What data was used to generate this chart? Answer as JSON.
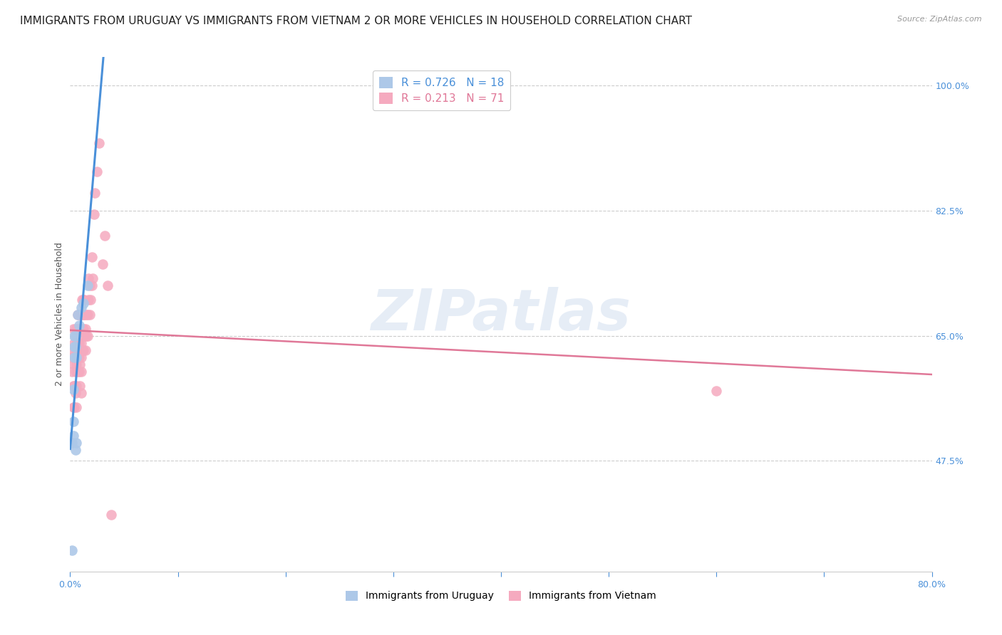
{
  "title": "IMMIGRANTS FROM URUGUAY VS IMMIGRANTS FROM VIETNAM 2 OR MORE VEHICLES IN HOUSEHOLD CORRELATION CHART",
  "source": "Source: ZipAtlas.com",
  "ylabel": "2 or more Vehicles in Household",
  "xlim": [
    0.0,
    0.8
  ],
  "ylim": [
    0.32,
    1.04
  ],
  "xticks": [
    0.0,
    0.1,
    0.2,
    0.3,
    0.4,
    0.5,
    0.6,
    0.7,
    0.8
  ],
  "xticklabels": [
    "0.0%",
    "",
    "",
    "",
    "",
    "",
    "",
    "",
    "80.0%"
  ],
  "yticks_right": [
    1.0,
    0.825,
    0.65,
    0.475
  ],
  "ytick_labels_right": [
    "100.0%",
    "82.5%",
    "65.0%",
    "47.5%"
  ],
  "legend_label1": "Immigrants from Uruguay",
  "legend_label2": "Immigrants from Vietnam",
  "uruguay_color": "#adc8e8",
  "vietnam_color": "#f5aabf",
  "uruguay_line_color": "#4a90d9",
  "vietnam_line_color": "#e07898",
  "watermark": "ZIPatlas",
  "uruguay_x": [
    0.002,
    0.002,
    0.003,
    0.003,
    0.003,
    0.004,
    0.004,
    0.004,
    0.005,
    0.005,
    0.005,
    0.006,
    0.006,
    0.007,
    0.008,
    0.01,
    0.012,
    0.016
  ],
  "uruguay_y": [
    0.35,
    0.5,
    0.51,
    0.53,
    0.575,
    0.62,
    0.635,
    0.65,
    0.635,
    0.65,
    0.49,
    0.5,
    0.62,
    0.68,
    0.665,
    0.69,
    0.695,
    0.72
  ],
  "vietnam_x": [
    0.002,
    0.002,
    0.003,
    0.003,
    0.003,
    0.003,
    0.004,
    0.004,
    0.004,
    0.004,
    0.005,
    0.005,
    0.005,
    0.005,
    0.006,
    0.006,
    0.006,
    0.006,
    0.007,
    0.007,
    0.007,
    0.007,
    0.007,
    0.008,
    0.008,
    0.008,
    0.008,
    0.008,
    0.009,
    0.009,
    0.009,
    0.009,
    0.01,
    0.01,
    0.01,
    0.01,
    0.01,
    0.01,
    0.011,
    0.011,
    0.011,
    0.012,
    0.012,
    0.012,
    0.012,
    0.013,
    0.013,
    0.013,
    0.014,
    0.014,
    0.015,
    0.015,
    0.016,
    0.016,
    0.017,
    0.017,
    0.018,
    0.018,
    0.019,
    0.02,
    0.02,
    0.021,
    0.022,
    0.023,
    0.025,
    0.027,
    0.03,
    0.032,
    0.035,
    0.038,
    0.6
  ],
  "vietnam_y": [
    0.6,
    0.62,
    0.55,
    0.58,
    0.63,
    0.66,
    0.55,
    0.58,
    0.61,
    0.64,
    0.57,
    0.6,
    0.63,
    0.66,
    0.55,
    0.58,
    0.61,
    0.64,
    0.6,
    0.62,
    0.64,
    0.66,
    0.68,
    0.6,
    0.62,
    0.64,
    0.66,
    0.68,
    0.58,
    0.61,
    0.63,
    0.66,
    0.57,
    0.6,
    0.62,
    0.64,
    0.66,
    0.68,
    0.63,
    0.66,
    0.7,
    0.63,
    0.66,
    0.68,
    0.7,
    0.65,
    0.68,
    0.7,
    0.63,
    0.66,
    0.65,
    0.68,
    0.65,
    0.68,
    0.7,
    0.73,
    0.68,
    0.72,
    0.7,
    0.72,
    0.76,
    0.73,
    0.82,
    0.85,
    0.88,
    0.92,
    0.75,
    0.79,
    0.72,
    0.4,
    0.573
  ],
  "background_color": "#ffffff",
  "grid_color": "#cccccc",
  "title_fontsize": 11,
  "axis_label_fontsize": 9,
  "tick_fontsize": 9,
  "legend_r_uru": "R = 0.726",
  "legend_n_uru": "N = 18",
  "legend_r_vie": "R = 0.213",
  "legend_n_vie": "N = 71"
}
